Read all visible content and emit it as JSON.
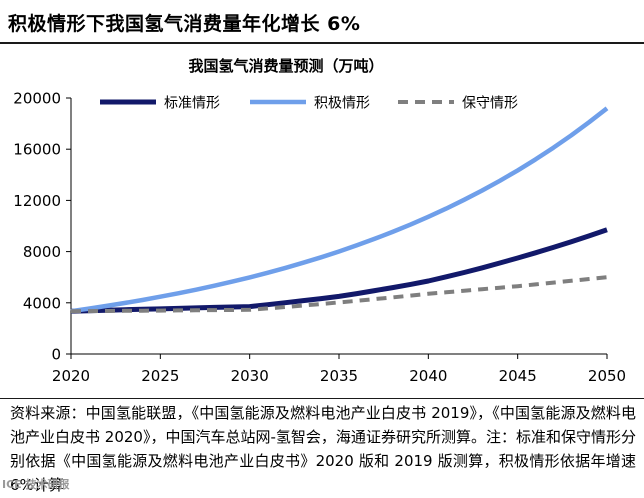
{
  "header": {
    "title": "积极情形下我国氢气消费量年化增长 6%"
  },
  "chart_data": {
    "type": "line",
    "title": "我国氢气消费量预测（万吨）",
    "xlabel": "",
    "ylabel": "",
    "xlim": [
      2020,
      2050
    ],
    "ylim": [
      0,
      20000
    ],
    "x_ticks": [
      2020,
      2025,
      2030,
      2035,
      2040,
      2045,
      2050
    ],
    "x_tick_labels": [
      "2020",
      "2025",
      "2030",
      "2035",
      "2040",
      "2045",
      "2050"
    ],
    "y_ticks": [
      0,
      4000,
      8000,
      12000,
      16000,
      20000
    ],
    "y_tick_labels": [
      "0",
      "4000",
      "8000",
      "12000",
      "16000",
      "20000"
    ],
    "x": [
      2020,
      2021,
      2022,
      2023,
      2024,
      2025,
      2026,
      2027,
      2028,
      2029,
      2030,
      2031,
      2032,
      2033,
      2034,
      2035,
      2036,
      2037,
      2038,
      2039,
      2040,
      2041,
      2042,
      2043,
      2044,
      2045,
      2046,
      2047,
      2048,
      2049,
      2050
    ],
    "series": [
      {
        "name": "标准情形",
        "style": "solid",
        "color": "#12196a",
        "values": [
          3342,
          3380,
          3420,
          3460,
          3490,
          3520,
          3560,
          3600,
          3640,
          3670,
          3700,
          3850,
          4010,
          4170,
          4330,
          4500,
          4720,
          4950,
          5190,
          5440,
          5700,
          6030,
          6370,
          6730,
          7110,
          7500,
          7910,
          8330,
          8770,
          9230,
          9700
        ]
      },
      {
        "name": "积极情形",
        "style": "solid",
        "color": "#6f9fea",
        "values": [
          3342,
          3543,
          3756,
          3981,
          4220,
          4473,
          4741,
          5026,
          5327,
          5647,
          5986,
          6345,
          6725,
          7129,
          7557,
          8010,
          8491,
          9000,
          9540,
          10113,
          10719,
          11363,
          12044,
          12767,
          13533,
          14345,
          15206,
          16118,
          17085,
          18110,
          19197
        ]
      },
      {
        "name": "保守情形",
        "style": "dashed",
        "color": "#7f7f7f",
        "values": [
          3342,
          3352,
          3362,
          3372,
          3382,
          3392,
          3404,
          3416,
          3428,
          3440,
          3450,
          3560,
          3670,
          3790,
          3910,
          4030,
          4160,
          4290,
          4420,
          4560,
          4700,
          4820,
          4940,
          5060,
          5180,
          5300,
          5440,
          5580,
          5720,
          5860,
          6000
        ]
      }
    ],
    "legend_position": "top"
  },
  "source_note": "资料来源：中国氢能联盟，《中国氢能源及燃料电池产业白皮书 2019》，《中国氢能源及燃料电池产业白皮书 2020》，中国汽车总站网-氢智会，海通证券研究所测算。注：标准和保守情形分别依据《中国氢能源及燃料电池产业白皮书》2020 版和 2019 版测算，积极情形依据年增速 6%计算",
  "watermark": "ICE 技术研报"
}
